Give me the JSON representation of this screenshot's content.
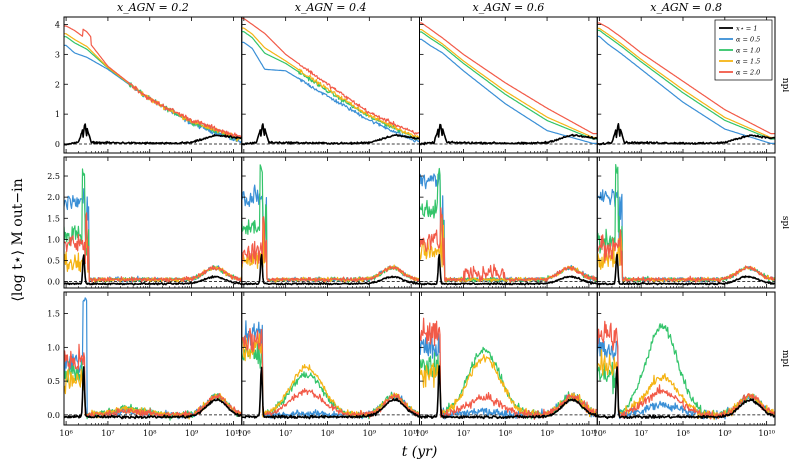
{
  "chart_data": {
    "type": "line",
    "xlabel": "t (yr)",
    "ylabel": "⟨log t⋆⟩ M out−in",
    "xscale": "log",
    "xlim_log10": [
      5.95,
      10.2
    ],
    "x_tick_labels": [
      "10⁶",
      "10⁷",
      "10⁸",
      "10⁹",
      "10¹⁰"
    ],
    "x_tick_log10": [
      6,
      7,
      8,
      9,
      10
    ],
    "columns": [
      {
        "title": "x_AGN = 0.2"
      },
      {
        "title": "x_AGN = 0.4"
      },
      {
        "title": "x_AGN = 0.6"
      },
      {
        "title": "x_AGN = 0.8"
      }
    ],
    "rows": [
      {
        "label": "npl",
        "ylim": [
          -0.3,
          4.25
        ],
        "y_tick_labels": [
          "0",
          "1",
          "2",
          "3",
          "4"
        ],
        "y_ticks": [
          0,
          1,
          2,
          3,
          4
        ]
      },
      {
        "label": "spl",
        "ylim": [
          -0.15,
          2.95
        ],
        "y_tick_labels": [
          "0.0",
          "0.5",
          "1.0",
          "1.5",
          "2.0",
          "2.5"
        ],
        "y_ticks": [
          0,
          0.5,
          1.0,
          1.5,
          2.0,
          2.5
        ]
      },
      {
        "label": "mpl",
        "ylim": [
          -0.15,
          1.82
        ],
        "y_tick_labels": [
          "0.0",
          "0.5",
          "1.0",
          "1.5"
        ],
        "y_ticks": [
          0,
          0.5,
          1.0,
          1.5
        ]
      }
    ],
    "legend": {
      "placement": "top-right",
      "entries": [
        {
          "label": "x⋆ = 1",
          "color": "#000000"
        },
        {
          "label": "α = 0.5",
          "color": "#3a8fd6"
        },
        {
          "label": "α = 1.0",
          "color": "#33c46a"
        },
        {
          "label": "α = 1.5",
          "color": "#f5b416"
        },
        {
          "label": "α = 2.0",
          "color": "#f25a48"
        }
      ]
    },
    "reference_line": {
      "y": 0,
      "style": "dashed"
    },
    "series": [
      {
        "row": "npl",
        "name": "α = 2.0",
        "x_log10": [
          6,
          6.2,
          6.5,
          7,
          8,
          9,
          10.1
        ],
        "y_by_column": [
          [
            3.95,
            3.8,
            3.5,
            2.6,
            1.5,
            0.8,
            0.25
          ],
          [
            4.2,
            4.0,
            3.7,
            3.0,
            2.0,
            1.05,
            0.35
          ],
          [
            4.05,
            3.85,
            3.55,
            3.0,
            2.05,
            1.2,
            0.35
          ],
          [
            4.05,
            3.9,
            3.6,
            3.05,
            2.1,
            1.15,
            0.35
          ]
        ]
      },
      {
        "row": "npl",
        "name": "α = 0.5",
        "x_log10": [
          6,
          6.2,
          6.5,
          7,
          8,
          9,
          10.1
        ],
        "y_by_column": [
          [
            3.3,
            3.05,
            2.9,
            2.5,
            1.5,
            0.7,
            0.1
          ],
          [
            3.4,
            3.2,
            2.5,
            2.45,
            1.6,
            0.8,
            0.1
          ],
          [
            3.5,
            3.3,
            3.05,
            2.45,
            1.35,
            0.45,
            0.02
          ],
          [
            3.6,
            3.35,
            3.05,
            2.5,
            1.4,
            0.5,
            0.02
          ]
        ]
      },
      {
        "row": "npl",
        "name": "x⋆ = 1",
        "x_log10": [
          6,
          6.3,
          6.45,
          6.6,
          8.5,
          9,
          9.6,
          10.1
        ],
        "y_by_column": [
          [
            0,
            0.05,
            0.75,
            0.05,
            0.02,
            0.05,
            0.3,
            0.2
          ],
          [
            0,
            0.05,
            0.75,
            0.05,
            0.02,
            0.05,
            0.3,
            0.2
          ],
          [
            0,
            0.05,
            0.75,
            0.05,
            0.02,
            0.05,
            0.3,
            0.2
          ],
          [
            0,
            0.05,
            0.75,
            0.05,
            0.02,
            0.05,
            0.3,
            0.2
          ]
        ]
      }
    ]
  }
}
